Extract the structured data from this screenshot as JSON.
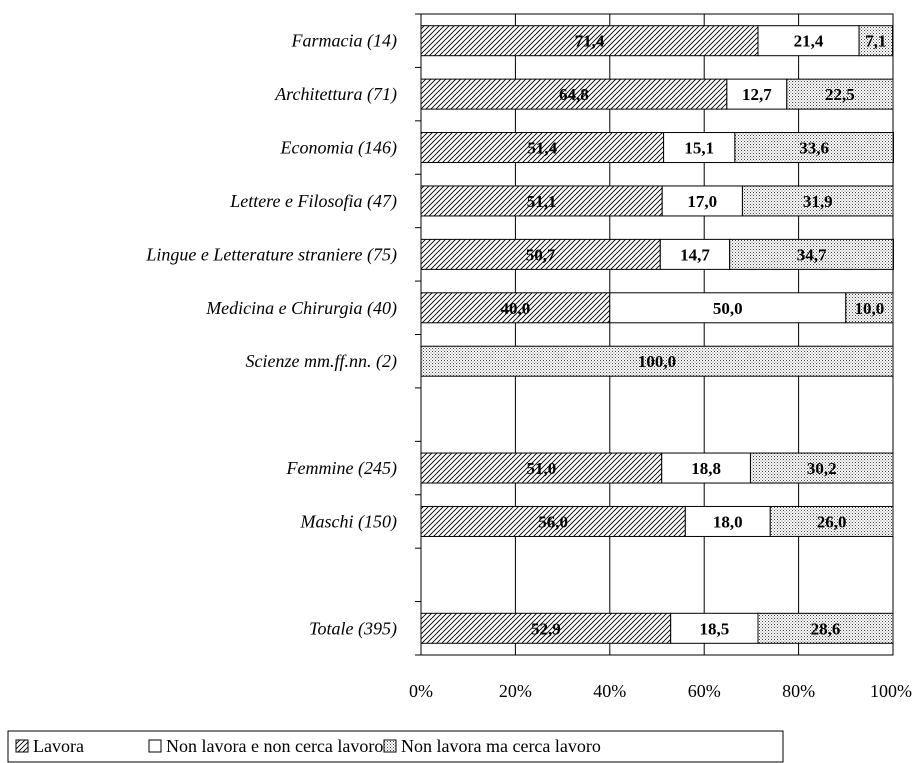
{
  "chart_data": {
    "type": "bar",
    "orientation": "horizontal",
    "stacked": true,
    "percent_stacked": true,
    "categories": [
      "Farmacia (14)",
      "Architettura (71)",
      "Economia (146)",
      "Lettere e Filosofia (47)",
      "Lingue e Letterature straniere (75)",
      "Medicina e Chirurgia (40)",
      "Scienze mm.ff.nn. (2)",
      "",
      "Femmine (245)",
      "Maschi (150)",
      "",
      "Totale (395)"
    ],
    "series": [
      {
        "name": "Lavora",
        "pattern": "diagonal-hatch",
        "values": [
          71.4,
          64.8,
          51.4,
          51.1,
          50.7,
          40.0,
          null,
          null,
          51.0,
          56.0,
          null,
          52.9
        ],
        "labels": [
          "71,4",
          "64,8",
          "51,4",
          "51,1",
          "50,7",
          "40,0",
          "",
          "",
          "51,0",
          "56,0",
          "",
          "52,9"
        ]
      },
      {
        "name": "Non lavora e non cerca lavoro",
        "pattern": "solid-white",
        "values": [
          21.4,
          12.7,
          15.1,
          17.0,
          14.7,
          50.0,
          null,
          null,
          18.8,
          18.0,
          null,
          18.5
        ],
        "labels": [
          "21,4",
          "12,7",
          "15,1",
          "17,0",
          "14,7",
          "50,0",
          "",
          "",
          "18,8",
          "18,0",
          "",
          "18,5"
        ]
      },
      {
        "name": "Non lavora ma cerca lavoro",
        "pattern": "dots",
        "values": [
          7.1,
          22.5,
          33.6,
          31.9,
          34.7,
          10.0,
          100.0,
          null,
          30.2,
          26.0,
          null,
          28.6
        ],
        "labels": [
          "7,1",
          "22,5",
          "33,6",
          "31,9",
          "34,7",
          "10,0",
          "100,0",
          "",
          "30,2",
          "26,0",
          "",
          "28,6"
        ]
      }
    ],
    "xlim": [
      0,
      100
    ],
    "x_ticks": [
      "0%",
      "20%",
      "40%",
      "60%",
      "80%",
      "100%"
    ],
    "x_tick_values": [
      0,
      20,
      40,
      60,
      80,
      100
    ],
    "grid": "vertical",
    "legend": "bottom"
  }
}
